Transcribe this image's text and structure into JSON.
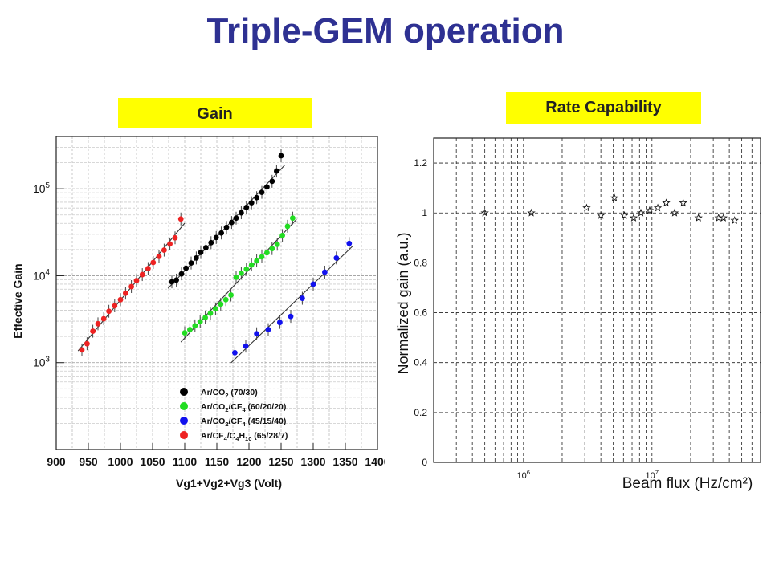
{
  "page": {
    "title": "Triple-GEM operation"
  },
  "panels": {
    "gain_label": "Gain",
    "rate_label": "Rate Capability"
  },
  "chart_data": [
    {
      "type": "scatter",
      "xlabel": "Vg1+Vg2+Vg3 (Volt)",
      "ylabel": "Effective Gain",
      "xlim": [
        900,
        1400
      ],
      "ylim": [
        100,
        400000
      ],
      "yscale": "log",
      "x_ticks": [
        900,
        950,
        1000,
        1050,
        1100,
        1150,
        1200,
        1250,
        1300,
        1350,
        1400
      ],
      "y_ticks": [
        {
          "value": 1000,
          "base": "10",
          "exp": "3"
        },
        {
          "value": 10000,
          "base": "10",
          "exp": "4"
        },
        {
          "value": 100000,
          "base": "10",
          "exp": "5"
        }
      ],
      "grid": true,
      "legend_position": "bottom-right",
      "series": [
        {
          "name": "Ar/CO2 (70/30)",
          "name_parts": {
            "a": "Ar/CO",
            "s1": "2",
            "b": " (70/30)",
            "s2": "",
            "c": "",
            "s3": "",
            "d": ""
          },
          "color": "#000000",
          "x": [
            1080,
            1087,
            1095,
            1102,
            1110,
            1118,
            1125,
            1133,
            1141,
            1149,
            1157,
            1165,
            1173,
            1180,
            1188,
            1196,
            1204,
            1212,
            1220,
            1228,
            1236,
            1243,
            1250
          ],
          "y": [
            8500,
            8900,
            10500,
            12200,
            14000,
            16000,
            18500,
            21000,
            24000,
            27500,
            31000,
            36000,
            41000,
            46000,
            53000,
            61000,
            69000,
            79000,
            91000,
            105000,
            122000,
            160000,
            240000
          ]
        },
        {
          "name": "Ar/CO2/CF4 (60/20/20)",
          "name_parts": {
            "a": "Ar/CO",
            "s1": "2",
            "b": "/CF",
            "s2": "4",
            "c": " (60/20/20)",
            "s3": "",
            "d": ""
          },
          "color": "#22dd22",
          "x": [
            1100,
            1108,
            1116,
            1124,
            1132,
            1140,
            1148,
            1156,
            1164,
            1172,
            1180,
            1188,
            1196,
            1204,
            1212,
            1220,
            1228,
            1236,
            1244,
            1252,
            1260,
            1268
          ],
          "y": [
            2200,
            2400,
            2650,
            2950,
            3300,
            3700,
            4150,
            4700,
            5300,
            6000,
            9600,
            10700,
            11900,
            13300,
            14800,
            16500,
            18400,
            20500,
            23000,
            29000,
            37000,
            46000
          ]
        },
        {
          "name": "Ar/CO2/CF4 (45/15/40)",
          "name_parts": {
            "a": "Ar/CO",
            "s1": "2",
            "b": "/CF",
            "s2": "4",
            "c": " (45/15/40)",
            "s3": "",
            "d": ""
          },
          "color": "#1111ee",
          "x": [
            1178,
            1195,
            1212,
            1230,
            1248,
            1265,
            1283,
            1300,
            1318,
            1336,
            1356
          ],
          "y": [
            1300,
            1550,
            2150,
            2400,
            2900,
            3400,
            5500,
            8000,
            11000,
            16000,
            23500
          ]
        },
        {
          "name": "Ar/CF4/C4H10 (65/28/7)",
          "name_parts": {
            "a": "Ar/CF",
            "s1": "4",
            "b": "/C",
            "s2": "4",
            "c": "H",
            "s3": "10",
            "d": " (65/28/7)"
          },
          "color": "#ee2222",
          "x": [
            940,
            948,
            957,
            965,
            974,
            982,
            991,
            1000,
            1008,
            1017,
            1025,
            1034,
            1043,
            1051,
            1060,
            1068,
            1077,
            1085,
            1094
          ],
          "y": [
            1400,
            1650,
            2300,
            2800,
            3200,
            3900,
            4500,
            5300,
            6300,
            7500,
            8800,
            10300,
            12100,
            14200,
            16700,
            19700,
            23200,
            27300,
            45000
          ]
        }
      ]
    },
    {
      "type": "scatter",
      "xlabel": "Beam flux (Hz/cm²)",
      "ylabel": "Normalized gain (a.u.)",
      "xscale": "log",
      "xlim": [
        200000,
        70000000
      ],
      "ylim": [
        0,
        1.3
      ],
      "x_ticks": [
        {
          "value": 1000000,
          "base": "10",
          "exp": "6"
        },
        {
          "value": 10000000,
          "base": "10",
          "exp": "7"
        }
      ],
      "y_ticks": [
        {
          "value": 0,
          "label": "0"
        },
        {
          "value": 0.2,
          "label": "0.2"
        },
        {
          "value": 0.4,
          "label": "0.4"
        },
        {
          "value": 0.6,
          "label": "0.6"
        },
        {
          "value": 0.8,
          "label": "0.8"
        },
        {
          "value": 1,
          "label": "1"
        },
        {
          "value": 1.2,
          "label": "1.2"
        }
      ],
      "grid": true,
      "marker": "star",
      "x": [
        500000,
        1150000,
        3100000,
        4000000,
        5100000,
        6100000,
        7200000,
        8200000,
        9600000,
        11100000,
        12900000,
        15000000,
        17500000,
        23000000,
        33000000,
        36000000,
        44000000
      ],
      "y": [
        1.0,
        1.0,
        1.02,
        0.99,
        1.06,
        0.99,
        0.98,
        1.0,
        1.01,
        1.02,
        1.04,
        1.0,
        1.04,
        0.98,
        0.98,
        0.98,
        0.97
      ]
    }
  ]
}
